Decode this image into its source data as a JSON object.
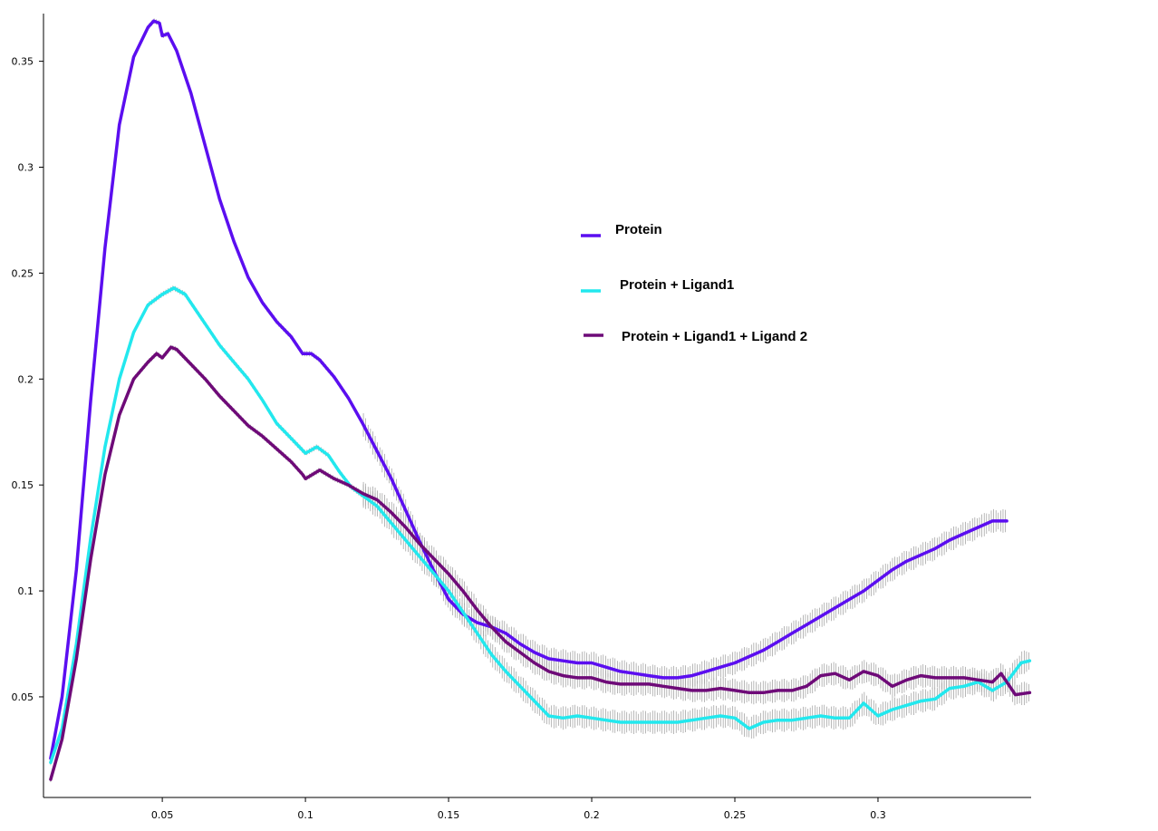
{
  "chart_data": {
    "type": "line",
    "title": "",
    "xlabel": "",
    "ylabel": "",
    "xlim": [
      0.0085,
      0.3535
    ],
    "ylim": [
      0.0025,
      0.3725
    ],
    "xticks": [
      {
        "value": 0.05,
        "label": "0.05"
      },
      {
        "value": 0.1,
        "label": "0.1"
      },
      {
        "value": 0.15,
        "label": "0.15"
      },
      {
        "value": 0.2,
        "label": "0.2"
      },
      {
        "value": 0.25,
        "label": "0.25"
      },
      {
        "value": 0.3,
        "label": "0.3"
      }
    ],
    "yticks": [
      {
        "value": 0.05,
        "label": "0.05"
      },
      {
        "value": 0.1,
        "label": "0.1"
      },
      {
        "value": 0.15,
        "label": "0.15"
      },
      {
        "value": 0.2,
        "label": "0.2"
      },
      {
        "value": 0.25,
        "label": "0.25"
      },
      {
        "value": 0.3,
        "label": "0.3"
      },
      {
        "value": 0.35,
        "label": "0.35"
      }
    ],
    "grid": false,
    "legend_position": "center-right",
    "series": [
      {
        "name": "Protein",
        "color": "#5b0ef0",
        "points": [
          [
            0.011,
            0.021
          ],
          [
            0.015,
            0.05
          ],
          [
            0.02,
            0.11
          ],
          [
            0.025,
            0.19
          ],
          [
            0.03,
            0.262
          ],
          [
            0.035,
            0.32
          ],
          [
            0.04,
            0.352
          ],
          [
            0.045,
            0.366
          ],
          [
            0.047,
            0.369
          ],
          [
            0.049,
            0.368
          ],
          [
            0.05,
            0.362
          ],
          [
            0.052,
            0.363
          ],
          [
            0.055,
            0.355
          ],
          [
            0.06,
            0.335
          ],
          [
            0.065,
            0.31
          ],
          [
            0.07,
            0.285
          ],
          [
            0.075,
            0.265
          ],
          [
            0.08,
            0.248
          ],
          [
            0.085,
            0.236
          ],
          [
            0.09,
            0.227
          ],
          [
            0.095,
            0.22
          ],
          [
            0.099,
            0.212
          ],
          [
            0.102,
            0.212
          ],
          [
            0.105,
            0.209
          ],
          [
            0.11,
            0.201
          ],
          [
            0.115,
            0.191
          ],
          [
            0.12,
            0.179
          ],
          [
            0.125,
            0.166
          ],
          [
            0.13,
            0.153
          ],
          [
            0.135,
            0.138
          ],
          [
            0.14,
            0.123
          ],
          [
            0.145,
            0.109
          ],
          [
            0.15,
            0.096
          ],
          [
            0.155,
            0.089
          ],
          [
            0.16,
            0.085
          ],
          [
            0.165,
            0.083
          ],
          [
            0.17,
            0.08
          ],
          [
            0.175,
            0.075
          ],
          [
            0.18,
            0.071
          ],
          [
            0.185,
            0.068
          ],
          [
            0.19,
            0.067
          ],
          [
            0.195,
            0.066
          ],
          [
            0.2,
            0.066
          ],
          [
            0.205,
            0.064
          ],
          [
            0.21,
            0.062
          ],
          [
            0.215,
            0.061
          ],
          [
            0.22,
            0.06
          ],
          [
            0.225,
            0.059
          ],
          [
            0.23,
            0.059
          ],
          [
            0.235,
            0.06
          ],
          [
            0.24,
            0.062
          ],
          [
            0.245,
            0.064
          ],
          [
            0.25,
            0.066
          ],
          [
            0.255,
            0.069
          ],
          [
            0.26,
            0.072
          ],
          [
            0.265,
            0.076
          ],
          [
            0.27,
            0.08
          ],
          [
            0.275,
            0.084
          ],
          [
            0.28,
            0.088
          ],
          [
            0.285,
            0.092
          ],
          [
            0.29,
            0.096
          ],
          [
            0.295,
            0.1
          ],
          [
            0.3,
            0.105
          ],
          [
            0.305,
            0.11
          ],
          [
            0.31,
            0.114
          ],
          [
            0.315,
            0.117
          ],
          [
            0.32,
            0.12
          ],
          [
            0.325,
            0.124
          ],
          [
            0.33,
            0.127
          ],
          [
            0.335,
            0.13
          ],
          [
            0.34,
            0.133
          ],
          [
            0.345,
            0.133
          ]
        ]
      },
      {
        "name": "Protein + Ligand1",
        "color": "#22e8ee",
        "points": [
          [
            0.011,
            0.019
          ],
          [
            0.015,
            0.035
          ],
          [
            0.02,
            0.075
          ],
          [
            0.025,
            0.125
          ],
          [
            0.03,
            0.168
          ],
          [
            0.035,
            0.2
          ],
          [
            0.04,
            0.222
          ],
          [
            0.045,
            0.235
          ],
          [
            0.05,
            0.24
          ],
          [
            0.054,
            0.243
          ],
          [
            0.058,
            0.24
          ],
          [
            0.062,
            0.232
          ],
          [
            0.066,
            0.224
          ],
          [
            0.07,
            0.216
          ],
          [
            0.075,
            0.208
          ],
          [
            0.08,
            0.2
          ],
          [
            0.085,
            0.19
          ],
          [
            0.09,
            0.179
          ],
          [
            0.095,
            0.172
          ],
          [
            0.1,
            0.165
          ],
          [
            0.104,
            0.168
          ],
          [
            0.108,
            0.164
          ],
          [
            0.112,
            0.156
          ],
          [
            0.116,
            0.149
          ],
          [
            0.12,
            0.145
          ],
          [
            0.125,
            0.14
          ],
          [
            0.13,
            0.132
          ],
          [
            0.135,
            0.124
          ],
          [
            0.14,
            0.116
          ],
          [
            0.145,
            0.108
          ],
          [
            0.15,
            0.1
          ],
          [
            0.155,
            0.09
          ],
          [
            0.16,
            0.08
          ],
          [
            0.165,
            0.07
          ],
          [
            0.17,
            0.062
          ],
          [
            0.175,
            0.055
          ],
          [
            0.18,
            0.048
          ],
          [
            0.185,
            0.041
          ],
          [
            0.19,
            0.04
          ],
          [
            0.195,
            0.041
          ],
          [
            0.2,
            0.04
          ],
          [
            0.205,
            0.039
          ],
          [
            0.21,
            0.038
          ],
          [
            0.215,
            0.038
          ],
          [
            0.22,
            0.038
          ],
          [
            0.225,
            0.038
          ],
          [
            0.23,
            0.038
          ],
          [
            0.235,
            0.039
          ],
          [
            0.24,
            0.04
          ],
          [
            0.245,
            0.041
          ],
          [
            0.25,
            0.04
          ],
          [
            0.255,
            0.035
          ],
          [
            0.26,
            0.038
          ],
          [
            0.265,
            0.039
          ],
          [
            0.27,
            0.039
          ],
          [
            0.275,
            0.04
          ],
          [
            0.28,
            0.041
          ],
          [
            0.285,
            0.04
          ],
          [
            0.29,
            0.04
          ],
          [
            0.295,
            0.047
          ],
          [
            0.3,
            0.041
          ],
          [
            0.305,
            0.044
          ],
          [
            0.31,
            0.046
          ],
          [
            0.315,
            0.048
          ],
          [
            0.32,
            0.049
          ],
          [
            0.325,
            0.054
          ],
          [
            0.33,
            0.055
          ],
          [
            0.335,
            0.057
          ],
          [
            0.34,
            0.053
          ],
          [
            0.345,
            0.057
          ],
          [
            0.35,
            0.066
          ],
          [
            0.353,
            0.067
          ]
        ]
      },
      {
        "name": "Protein + Ligand1 + Ligand 2",
        "color": "#6e0a78",
        "points": [
          [
            0.011,
            0.011
          ],
          [
            0.015,
            0.03
          ],
          [
            0.02,
            0.068
          ],
          [
            0.025,
            0.115
          ],
          [
            0.03,
            0.155
          ],
          [
            0.035,
            0.183
          ],
          [
            0.04,
            0.2
          ],
          [
            0.045,
            0.208
          ],
          [
            0.048,
            0.212
          ],
          [
            0.05,
            0.21
          ],
          [
            0.053,
            0.215
          ],
          [
            0.055,
            0.214
          ],
          [
            0.06,
            0.207
          ],
          [
            0.065,
            0.2
          ],
          [
            0.07,
            0.192
          ],
          [
            0.075,
            0.185
          ],
          [
            0.08,
            0.178
          ],
          [
            0.085,
            0.173
          ],
          [
            0.09,
            0.167
          ],
          [
            0.095,
            0.161
          ],
          [
            0.099,
            0.155
          ],
          [
            0.1,
            0.153
          ],
          [
            0.105,
            0.157
          ],
          [
            0.11,
            0.153
          ],
          [
            0.115,
            0.15
          ],
          [
            0.12,
            0.146
          ],
          [
            0.125,
            0.143
          ],
          [
            0.13,
            0.137
          ],
          [
            0.135,
            0.13
          ],
          [
            0.14,
            0.122
          ],
          [
            0.145,
            0.115
          ],
          [
            0.15,
            0.108
          ],
          [
            0.155,
            0.1
          ],
          [
            0.16,
            0.091
          ],
          [
            0.165,
            0.083
          ],
          [
            0.17,
            0.076
          ],
          [
            0.175,
            0.071
          ],
          [
            0.18,
            0.066
          ],
          [
            0.185,
            0.062
          ],
          [
            0.19,
            0.06
          ],
          [
            0.195,
            0.059
          ],
          [
            0.2,
            0.059
          ],
          [
            0.205,
            0.057
          ],
          [
            0.21,
            0.056
          ],
          [
            0.215,
            0.056
          ],
          [
            0.22,
            0.056
          ],
          [
            0.225,
            0.055
          ],
          [
            0.23,
            0.054
          ],
          [
            0.235,
            0.053
          ],
          [
            0.24,
            0.053
          ],
          [
            0.245,
            0.054
          ],
          [
            0.25,
            0.053
          ],
          [
            0.255,
            0.052
          ],
          [
            0.26,
            0.052
          ],
          [
            0.265,
            0.053
          ],
          [
            0.27,
            0.053
          ],
          [
            0.275,
            0.055
          ],
          [
            0.28,
            0.06
          ],
          [
            0.285,
            0.061
          ],
          [
            0.29,
            0.058
          ],
          [
            0.295,
            0.062
          ],
          [
            0.3,
            0.06
          ],
          [
            0.305,
            0.055
          ],
          [
            0.31,
            0.058
          ],
          [
            0.315,
            0.06
          ],
          [
            0.32,
            0.059
          ],
          [
            0.325,
            0.059
          ],
          [
            0.33,
            0.059
          ],
          [
            0.335,
            0.058
          ],
          [
            0.34,
            0.057
          ],
          [
            0.343,
            0.061
          ],
          [
            0.348,
            0.051
          ],
          [
            0.353,
            0.052
          ]
        ]
      }
    ]
  }
}
